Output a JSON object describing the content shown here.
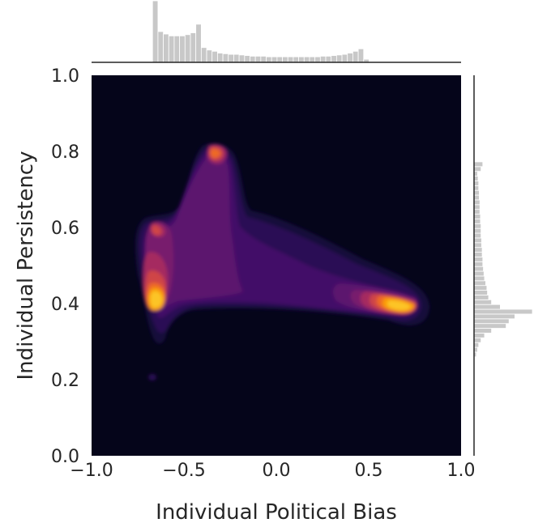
{
  "chart_data": {
    "type": "kde-joint",
    "xlabel": "Individual Political Bias",
    "ylabel": "Individual Persistency",
    "xlim": [
      -1.0,
      1.0
    ],
    "ylim": [
      0.0,
      1.0
    ],
    "xticks": [
      "−1.0",
      "−0.5",
      "0.0",
      "0.5",
      "1.0"
    ],
    "yticks": [
      "0.0",
      "0.2",
      "0.4",
      "0.6",
      "0.8",
      "1.0"
    ],
    "colormap": "inferno",
    "background_color": "#05051a",
    "density_peaks": [
      {
        "x": -0.62,
        "y": 0.42
      },
      {
        "x": 0.66,
        "y": 0.4
      },
      {
        "x": -0.32,
        "y": 0.8
      },
      {
        "x": -0.66,
        "y": 0.61
      },
      {
        "x": -0.66,
        "y": 0.21
      }
    ],
    "marginal_x": {
      "bin_start": -0.67,
      "bin_width": 0.0293,
      "counts": [
        100,
        50,
        46,
        43,
        43,
        43,
        45,
        48,
        62,
        24,
        20,
        18,
        15,
        14,
        13,
        13,
        12,
        11,
        10,
        10,
        10,
        9,
        9,
        9,
        9,
        9,
        9,
        9,
        9,
        9,
        9,
        10,
        10,
        11,
        12,
        13,
        15,
        18,
        22,
        5
      ]
    },
    "marginal_y": {
      "bin_start": 0.26,
      "bin_width": 0.0125,
      "counts": [
        4,
        6,
        8,
        12,
        18,
        30,
        55,
        60,
        70,
        100,
        45,
        30,
        25,
        23,
        22,
        20,
        18,
        17,
        16,
        15,
        15,
        14,
        14,
        13,
        13,
        12,
        12,
        12,
        11,
        11,
        10,
        10,
        10,
        9,
        9,
        8,
        8,
        7,
        6,
        12,
        15
      ]
    },
    "marginal_color": "#c8c8c8"
  }
}
